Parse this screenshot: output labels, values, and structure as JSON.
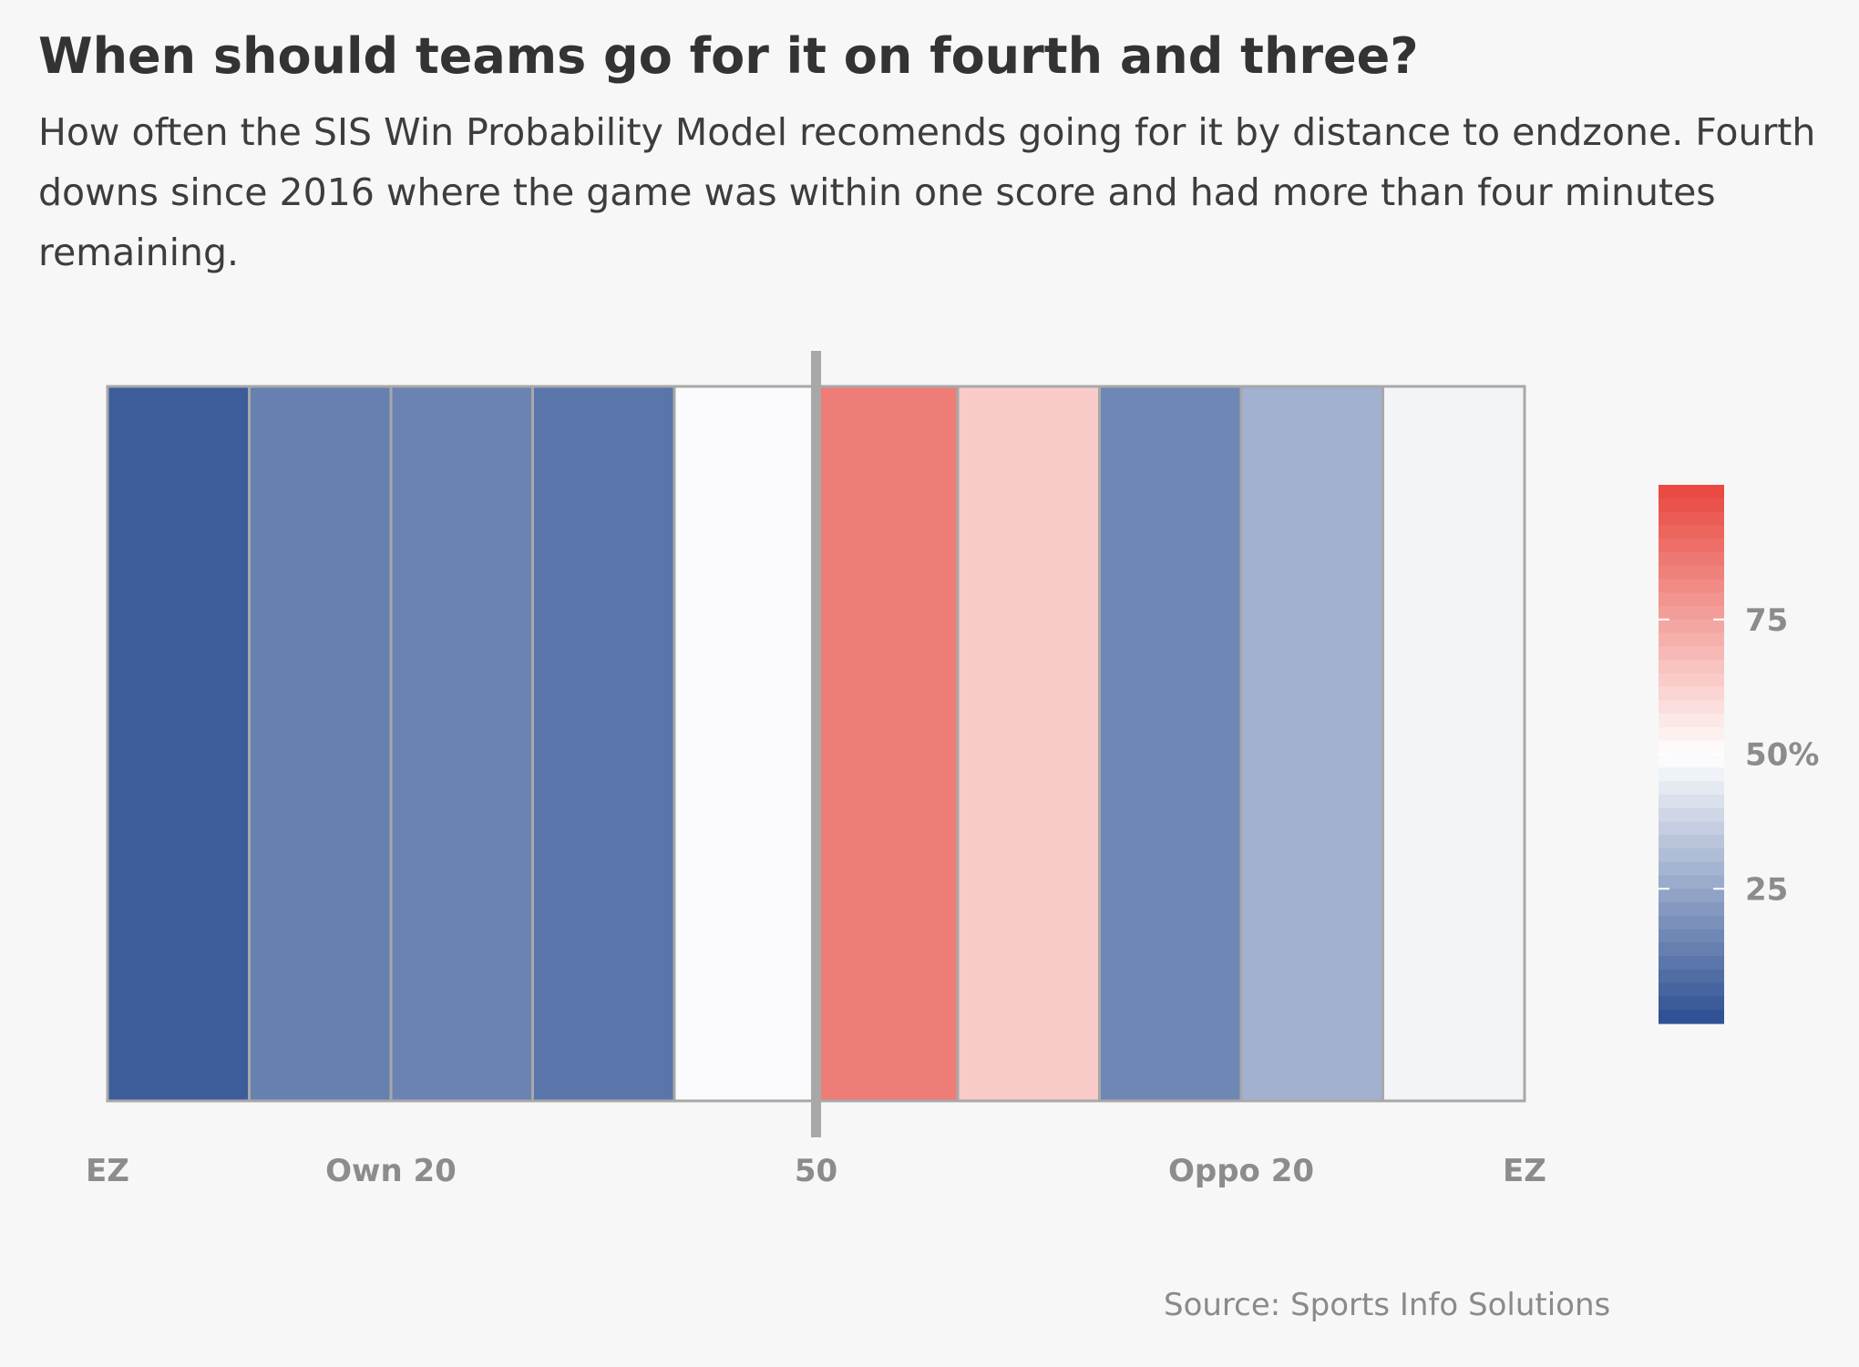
{
  "title": "When should teams go for it on fourth and three?",
  "subtitle": "How often the SIS Win Probability Model recomends going for it by distance to endzone. Fourth downs since 2016 where the game was within one score and had more than four minutes remaining.",
  "source": "Source: Sports Info Solutions",
  "chart_data": {
    "type": "heatmap",
    "x_axis": {
      "range": [
        0,
        100
      ],
      "tick_positions": [
        0,
        20,
        50,
        80,
        100
      ],
      "tick_labels": [
        "EZ",
        "Own 20",
        "50",
        "Oppo 20",
        "EZ"
      ]
    },
    "bin_width_yards": 10,
    "values_pct": [
      4,
      14,
      15,
      11,
      49,
      85,
      64,
      16,
      28,
      47
    ],
    "color_scale": {
      "min": 0,
      "mid": 50,
      "max": 100,
      "low_color": "#2b4e91",
      "mid_color": "#ffffff",
      "high_color": "#e8453c",
      "ticks": [
        25,
        50,
        75
      ],
      "tick_labels": [
        "25",
        "50%",
        "75"
      ]
    },
    "midfield_marker_yard": 50,
    "grid": false
  }
}
